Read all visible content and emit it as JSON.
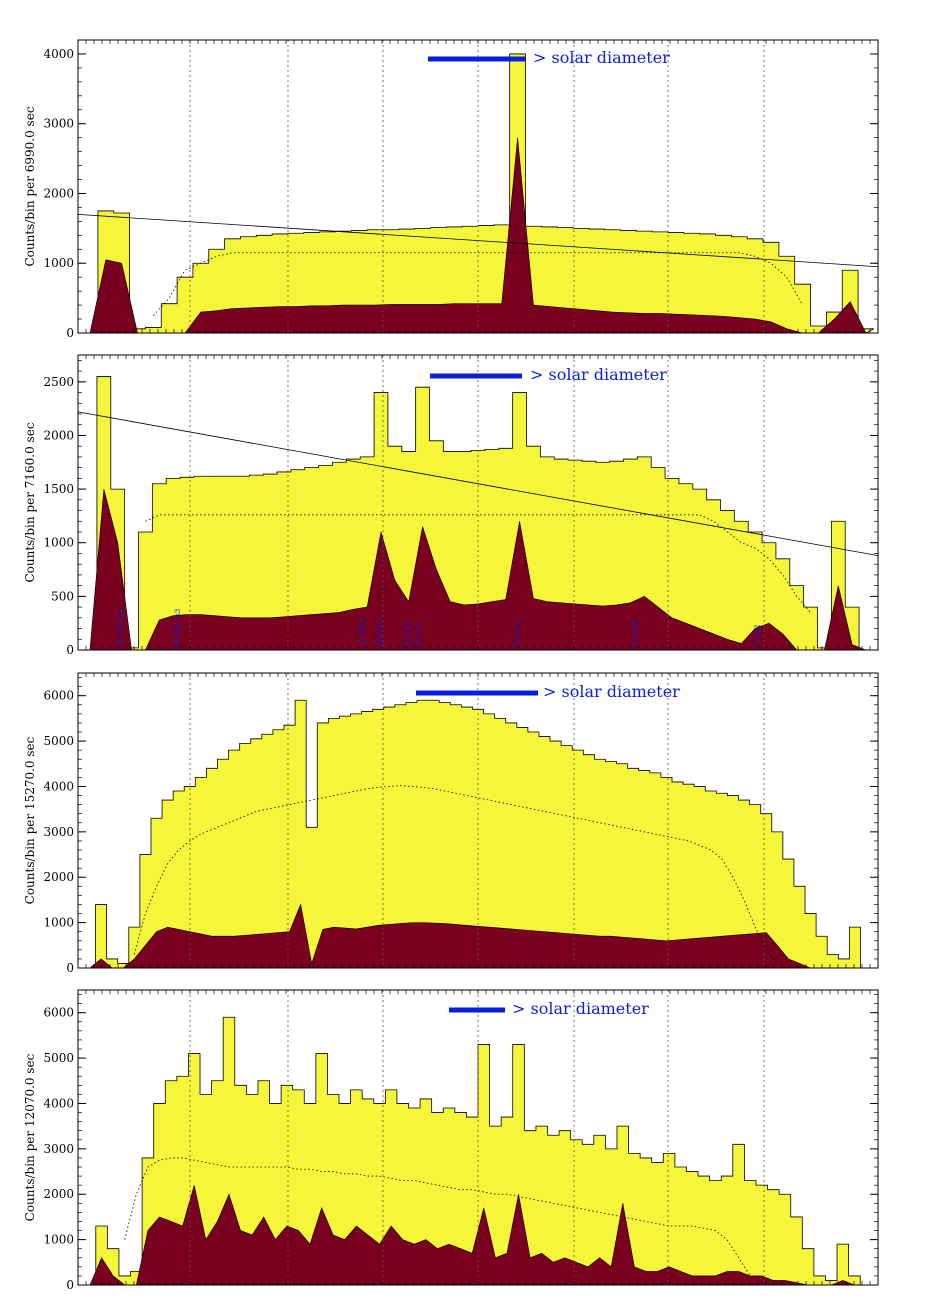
{
  "chart_data": [
    {
      "type": "area",
      "ylabel": "Counts/bin per   6990.0 sec",
      "ylim": [
        0,
        4200
      ],
      "yticks": [
        0,
        1000,
        2000,
        3000,
        4000
      ],
      "grid": "vertical dotted",
      "annotation": "> solar diameter",
      "yellow_envelope": [
        0,
        1750,
        1720,
        60,
        80,
        420,
        800,
        1000,
        1200,
        1350,
        1380,
        1400,
        1420,
        1430,
        1440,
        1450,
        1460,
        1470,
        1480,
        1480,
        1490,
        1500,
        1510,
        1520,
        1530,
        1540,
        1550,
        4000,
        1530,
        1520,
        1510,
        1500,
        1490,
        1480,
        1470,
        1460,
        1450,
        1440,
        1430,
        1420,
        1400,
        1380,
        1350,
        1300,
        1100,
        700,
        100,
        300,
        900,
        60
      ],
      "dark_profile": [
        0,
        1050,
        1000,
        0,
        0,
        0,
        0,
        300,
        320,
        350,
        360,
        370,
        380,
        380,
        390,
        390,
        400,
        400,
        400,
        410,
        410,
        410,
        410,
        420,
        420,
        420,
        420,
        2800,
        400,
        380,
        360,
        340,
        320,
        300,
        290,
        280,
        280,
        270,
        260,
        250,
        240,
        220,
        200,
        160,
        60,
        0,
        0,
        200,
        450,
        0
      ],
      "dotted_mean": [
        null,
        null,
        null,
        null,
        250,
        500,
        900,
        1000,
        1100,
        1150,
        1150,
        1150,
        1150,
        1150,
        1150,
        1150,
        1150,
        1150,
        1150,
        1150,
        1150,
        1150,
        1150,
        1150,
        1150,
        1150,
        1150,
        1150,
        1150,
        1150,
        1150,
        1150,
        1150,
        1150,
        1150,
        1150,
        1150,
        1150,
        1150,
        1150,
        1150,
        1150,
        1100,
        1000,
        800,
        400,
        null,
        null,
        null,
        null
      ],
      "trend_line": [
        1700,
        950
      ]
    },
    {
      "type": "area",
      "ylabel": "Counts/bin per   7160.0 sec",
      "ylim": [
        0,
        2750
      ],
      "yticks": [
        0,
        500,
        1000,
        1500,
        2000,
        2500
      ],
      "grid": "vertical dotted",
      "annotation": "> solar diameter",
      "yellow_envelope": [
        0,
        2550,
        1500,
        20,
        1100,
        1550,
        1600,
        1610,
        1620,
        1620,
        1620,
        1620,
        1630,
        1640,
        1660,
        1680,
        1700,
        1720,
        1750,
        1780,
        1800,
        2400,
        1900,
        1850,
        2450,
        1950,
        1850,
        1850,
        1860,
        1870,
        1880,
        2400,
        1900,
        1800,
        1780,
        1770,
        1760,
        1750,
        1760,
        1780,
        1800,
        1700,
        1600,
        1550,
        1500,
        1400,
        1300,
        1200,
        1100,
        1000,
        850,
        600,
        400,
        20,
        1200,
        400,
        0
      ],
      "dark_profile": [
        0,
        1500,
        1000,
        0,
        0,
        280,
        320,
        330,
        330,
        320,
        310,
        300,
        300,
        300,
        310,
        320,
        330,
        340,
        350,
        380,
        400,
        1100,
        650,
        450,
        1150,
        750,
        450,
        420,
        430,
        450,
        470,
        1200,
        480,
        450,
        440,
        430,
        420,
        410,
        420,
        440,
        500,
        400,
        300,
        250,
        200,
        150,
        100,
        60,
        200,
        250,
        150,
        0,
        0,
        0,
        600,
        50,
        0
      ],
      "dotted_mean": [
        null,
        null,
        null,
        null,
        1200,
        1260,
        1260,
        1260,
        1260,
        1260,
        1260,
        1260,
        1260,
        1260,
        1260,
        1260,
        1260,
        1260,
        1260,
        1260,
        1260,
        1260,
        1260,
        1260,
        1260,
        1260,
        1260,
        1260,
        1260,
        1260,
        1260,
        1260,
        1260,
        1260,
        1260,
        1260,
        1260,
        1260,
        1260,
        1260,
        1260,
        1260,
        1260,
        1260,
        1260,
        1200,
        1100,
        1000,
        950,
        850,
        700,
        500,
        350,
        null,
        null,
        null,
        null
      ],
      "trend_line": [
        2220,
        880
      ],
      "line_labels": [
        "Si XIV Lyα",
        "Si XIII 1s3",
        "Si XIV α",
        "Mg XI α",
        "Ne X β",
        "Ne X α",
        "Ne IX α",
        "Fe XVII",
        "O VIII",
        "O VII 1s3p"
      ]
    },
    {
      "type": "area",
      "ylabel": "Counts/bin per   15270.0 sec",
      "ylim": [
        0,
        6500
      ],
      "yticks": [
        0,
        1000,
        2000,
        3000,
        4000,
        5000,
        6000
      ],
      "grid": "vertical dotted",
      "annotation": "> solar diameter",
      "yellow_envelope": [
        0,
        1400,
        200,
        100,
        900,
        2500,
        3300,
        3700,
        3900,
        4000,
        4200,
        4400,
        4600,
        4800,
        4950,
        5050,
        5150,
        5250,
        5350,
        5900,
        3100,
        5400,
        5500,
        5550,
        5600,
        5650,
        5700,
        5750,
        5800,
        5850,
        5900,
        5900,
        5850,
        5800,
        5750,
        5700,
        5600,
        5500,
        5400,
        5300,
        5200,
        5100,
        5000,
        4900,
        4800,
        4700,
        4600,
        4550,
        4500,
        4400,
        4350,
        4300,
        4200,
        4100,
        4050,
        4000,
        3900,
        3850,
        3800,
        3700,
        3600,
        3400,
        3000,
        2400,
        1800,
        1200,
        700,
        300,
        200,
        900,
        0
      ],
      "dark_profile": [
        0,
        200,
        0,
        0,
        200,
        500,
        800,
        900,
        850,
        800,
        750,
        700,
        700,
        700,
        720,
        740,
        760,
        780,
        800,
        1400,
        100,
        850,
        900,
        880,
        860,
        900,
        940,
        960,
        980,
        1000,
        1000,
        990,
        980,
        960,
        940,
        920,
        900,
        880,
        860,
        840,
        820,
        800,
        780,
        760,
        740,
        720,
        700,
        700,
        680,
        660,
        640,
        620,
        600,
        620,
        640,
        660,
        680,
        700,
        720,
        740,
        760,
        780,
        500,
        200,
        100,
        0,
        0,
        0,
        0,
        0,
        0
      ],
      "dotted_mean": [
        null,
        null,
        null,
        null,
        300,
        1200,
        1800,
        2300,
        2600,
        2800,
        2950,
        3050,
        3150,
        3250,
        3350,
        3450,
        3500,
        3550,
        3600,
        3650,
        3700,
        3750,
        3800,
        3850,
        3900,
        3950,
        3980,
        4000,
        4020,
        4000,
        3980,
        3950,
        3900,
        3850,
        3800,
        3750,
        3700,
        3650,
        3600,
        3550,
        3500,
        3450,
        3400,
        3350,
        3300,
        3250,
        3200,
        3150,
        3100,
        3050,
        3000,
        2950,
        2900,
        2850,
        2800,
        2700,
        2600,
        2400,
        2000,
        1500,
        900,
        400,
        100,
        null,
        null,
        null,
        null,
        null,
        null,
        null,
        null
      ],
      "trend_line": null
    },
    {
      "type": "area",
      "ylabel": "Counts/bin per   12070.0 sec",
      "ylim": [
        0,
        6500
      ],
      "yticks": [
        0,
        1000,
        2000,
        3000,
        4000,
        5000,
        6000
      ],
      "grid": "vertical dotted",
      "annotation": "> solar diameter",
      "yellow_envelope": [
        0,
        1300,
        800,
        200,
        300,
        2800,
        4000,
        4500,
        4600,
        5100,
        4200,
        4500,
        5900,
        4400,
        4200,
        4500,
        4000,
        4400,
        4300,
        4000,
        5100,
        4200,
        4000,
        4300,
        4100,
        4000,
        4300,
        4000,
        3900,
        4100,
        3800,
        3900,
        3800,
        3700,
        5300,
        3500,
        3700,
        5300,
        3400,
        3500,
        3300,
        3400,
        3200,
        3100,
        3300,
        3000,
        3500,
        2900,
        2800,
        2700,
        2900,
        2600,
        2500,
        2400,
        2300,
        2400,
        3100,
        2300,
        2200,
        2100,
        2000,
        1500,
        800,
        200,
        100,
        900,
        200,
        0
      ],
      "dark_profile": [
        0,
        600,
        200,
        0,
        0,
        1200,
        1500,
        1400,
        1300,
        2200,
        1000,
        1400,
        2000,
        1200,
        1100,
        1500,
        1000,
        1300,
        1200,
        900,
        1700,
        1100,
        1000,
        1300,
        1100,
        900,
        1300,
        1000,
        900,
        1000,
        800,
        900,
        800,
        700,
        1700,
        600,
        700,
        2000,
        600,
        700,
        500,
        600,
        500,
        400,
        600,
        400,
        1800,
        400,
        300,
        300,
        400,
        300,
        200,
        200,
        200,
        300,
        300,
        200,
        200,
        100,
        100,
        50,
        0,
        0,
        0,
        100,
        0,
        0
      ],
      "dotted_mean": [
        null,
        null,
        null,
        1000,
        2000,
        2600,
        2750,
        2800,
        2800,
        2750,
        2700,
        2650,
        2600,
        2600,
        2600,
        2600,
        2600,
        2600,
        2550,
        2550,
        2500,
        2500,
        2450,
        2450,
        2400,
        2400,
        2350,
        2300,
        2300,
        2250,
        2200,
        2150,
        2100,
        2100,
        2050,
        2000,
        2000,
        1950,
        1900,
        1850,
        1800,
        1750,
        1700,
        1650,
        1600,
        1550,
        1500,
        1450,
        1400,
        1350,
        1300,
        1300,
        1300,
        1250,
        1200,
        1000,
        600,
        200,
        null,
        null,
        null,
        null,
        null,
        null,
        null,
        null,
        null,
        null
      ],
      "trend_line": null
    }
  ],
  "panels": [
    {
      "ylabel": "Counts/bin per   6990.0 sec",
      "annotation": "> solar diameter"
    },
    {
      "ylabel": "Counts/bin per   7160.0 sec",
      "annotation": "> solar diameter"
    },
    {
      "ylabel": "Counts/bin per   15270.0 sec",
      "annotation": "> solar diameter"
    },
    {
      "ylabel": "Counts/bin per   12070.0 sec",
      "annotation": "> solar diameter"
    }
  ],
  "colors": {
    "yellow_fill": "#f5f53a",
    "dark_fill": "#7a0020",
    "annotation_blue": "#0a1ee0",
    "axes": "#000000"
  }
}
